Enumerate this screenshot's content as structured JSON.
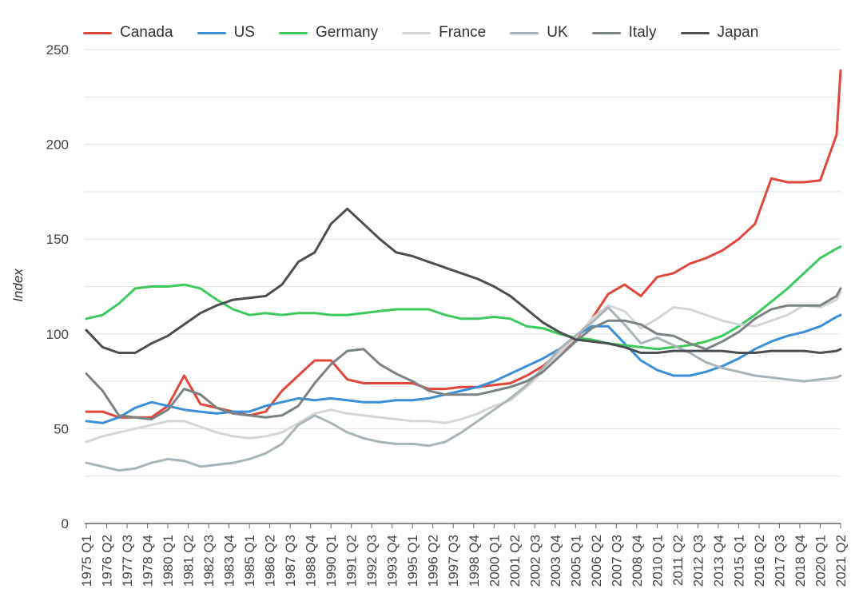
{
  "chart_data": {
    "type": "line",
    "title": "",
    "xlabel": "",
    "ylabel": "Index",
    "ylim": [
      0,
      250
    ],
    "yticks": [
      0,
      50,
      100,
      150,
      200,
      250
    ],
    "grid": true,
    "legend_position": "top",
    "x_tick_labels": [
      "1975 Q1",
      "1976 Q2",
      "1977 Q3",
      "1978 Q4",
      "1980 Q1",
      "1981 Q2",
      "1982 Q3",
      "1983 Q4",
      "1985 Q1",
      "1986 Q2",
      "1987 Q3",
      "1988 Q4",
      "1990 Q1",
      "1991 Q2",
      "1992 Q3",
      "1993 Q4",
      "1995 Q1",
      "1996 Q2",
      "1997 Q3",
      "1998 Q4",
      "2000 Q1",
      "2001 Q2",
      "2002 Q3",
      "2003 Q4",
      "2005 Q1",
      "2006 Q2",
      "2007 Q3",
      "2008 Q4",
      "2010 Q1",
      "2011 Q2",
      "2012 Q3",
      "2013 Q4",
      "2015 Q1",
      "2016 Q2",
      "2017 Q3",
      "2018 Q4",
      "2020 Q1",
      "2021 Q2"
    ],
    "x": [
      "1975 Q1",
      "1976 Q1",
      "1977 Q1",
      "1978 Q1",
      "1979 Q1",
      "1980 Q1",
      "1981 Q1",
      "1982 Q1",
      "1983 Q1",
      "1984 Q1",
      "1985 Q1",
      "1986 Q1",
      "1987 Q1",
      "1988 Q1",
      "1989 Q1",
      "1990 Q1",
      "1991 Q1",
      "1992 Q1",
      "1993 Q1",
      "1994 Q1",
      "1995 Q1",
      "1996 Q1",
      "1997 Q1",
      "1998 Q1",
      "1999 Q1",
      "2000 Q1",
      "2001 Q1",
      "2002 Q1",
      "2003 Q1",
      "2004 Q1",
      "2005 Q1",
      "2006 Q1",
      "2007 Q1",
      "2008 Q1",
      "2009 Q1",
      "2010 Q1",
      "2011 Q1",
      "2012 Q1",
      "2013 Q1",
      "2014 Q1",
      "2015 Q1",
      "2016 Q1",
      "2017 Q1",
      "2018 Q1",
      "2019 Q1",
      "2020 Q1",
      "2021 Q1",
      "2021 Q2"
    ],
    "series": [
      {
        "name": "Canada",
        "color": "#e0473c",
        "values": [
          59,
          59,
          56,
          56,
          56,
          62,
          78,
          63,
          61,
          59,
          57,
          59,
          70,
          78,
          86,
          86,
          76,
          74,
          74,
          74,
          74,
          71,
          71,
          72,
          72,
          73,
          74,
          78,
          83,
          90,
          97,
          108,
          121,
          126,
          120,
          130,
          132,
          137,
          140,
          144,
          150,
          158,
          182,
          180,
          180,
          181,
          205,
          239
        ]
      },
      {
        "name": "US",
        "color": "#3a8fd6",
        "values": [
          54,
          53,
          56,
          61,
          64,
          62,
          60,
          59,
          58,
          59,
          59,
          62,
          64,
          66,
          65,
          66,
          65,
          64,
          64,
          65,
          65,
          66,
          68,
          70,
          72,
          75,
          79,
          83,
          87,
          92,
          99,
          104,
          104,
          95,
          86,
          81,
          78,
          78,
          80,
          83,
          87,
          92,
          96,
          99,
          101,
          104,
          109,
          110
        ]
      },
      {
        "name": "Germany",
        "color": "#3ec95f",
        "values": [
          108,
          110,
          116,
          124,
          125,
          125,
          126,
          124,
          118,
          113,
          110,
          111,
          110,
          111,
          111,
          110,
          110,
          111,
          112,
          113,
          113,
          113,
          110,
          108,
          108,
          109,
          108,
          104,
          103,
          100,
          98,
          97,
          95,
          94,
          93,
          92,
          93,
          94,
          96,
          99,
          104,
          110,
          117,
          124,
          132,
          140,
          145,
          146
        ]
      },
      {
        "name": "France",
        "color": "#d6d6d6",
        "values": [
          43,
          46,
          48,
          50,
          52,
          54,
          54,
          51,
          48,
          46,
          45,
          46,
          48,
          53,
          58,
          60,
          58,
          57,
          56,
          55,
          54,
          54,
          53,
          55,
          58,
          62,
          65,
          72,
          80,
          90,
          98,
          108,
          115,
          112,
          103,
          108,
          114,
          113,
          110,
          107,
          105,
          104,
          107,
          110,
          115,
          114,
          118,
          122
        ]
      },
      {
        "name": "UK",
        "color": "#a9b4b8",
        "values": [
          32,
          30,
          28,
          29,
          32,
          34,
          33,
          30,
          31,
          32,
          34,
          37,
          42,
          52,
          57,
          53,
          48,
          45,
          43,
          42,
          42,
          41,
          43,
          48,
          54,
          60,
          66,
          73,
          82,
          92,
          99,
          106,
          114,
          105,
          95,
          98,
          94,
          90,
          85,
          82,
          80,
          78,
          77,
          76,
          75,
          76,
          77,
          78
        ]
      },
      {
        "name": "Italy",
        "color": "#7b8283",
        "values": [
          79,
          70,
          57,
          56,
          55,
          60,
          71,
          68,
          61,
          58,
          57,
          56,
          57,
          62,
          74,
          84,
          91,
          92,
          84,
          79,
          75,
          70,
          68,
          68,
          68,
          70,
          72,
          75,
          80,
          88,
          96,
          103,
          107,
          107,
          105,
          100,
          99,
          95,
          92,
          96,
          101,
          108,
          113,
          115,
          115,
          115,
          120,
          124
        ]
      },
      {
        "name": "Japan",
        "color": "#4a4f52",
        "values": [
          102,
          93,
          90,
          90,
          95,
          99,
          105,
          111,
          115,
          118,
          119,
          120,
          126,
          138,
          143,
          158,
          166,
          158,
          150,
          143,
          141,
          138,
          135,
          132,
          129,
          125,
          120,
          113,
          106,
          101,
          97,
          96,
          95,
          93,
          90,
          90,
          91,
          91,
          91,
          91,
          90,
          90,
          91,
          91,
          91,
          90,
          91,
          92
        ]
      }
    ]
  }
}
